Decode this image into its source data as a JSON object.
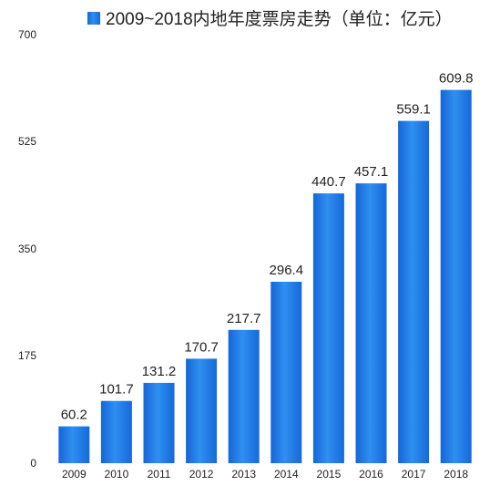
{
  "chart_data": {
    "type": "bar",
    "legend": "2009~2018内地年度票房走势（单位：亿元）",
    "categories": [
      "2009",
      "2010",
      "2011",
      "2012",
      "2013",
      "2014",
      "2015",
      "2016",
      "2017",
      "2018"
    ],
    "series": [
      {
        "name": "2009~2018内地年度票房走势（单位：亿元）",
        "values": [
          60.2,
          101.7,
          131.2,
          170.7,
          217.7,
          296.4,
          440.7,
          457.1,
          559.1,
          609.8
        ],
        "labels": [
          "60.2",
          "101.7",
          "131.2",
          "170.7",
          "217.7",
          "296.4",
          "440.7",
          "457.1",
          "559.1",
          "609.8"
        ],
        "color": "#1f7be0"
      }
    ],
    "yticks": [
      "0",
      "175",
      "350",
      "525",
      "700"
    ],
    "ylim": [
      0,
      700
    ],
    "grid": false,
    "legend_position": "top",
    "xlabel": "",
    "ylabel": ""
  }
}
